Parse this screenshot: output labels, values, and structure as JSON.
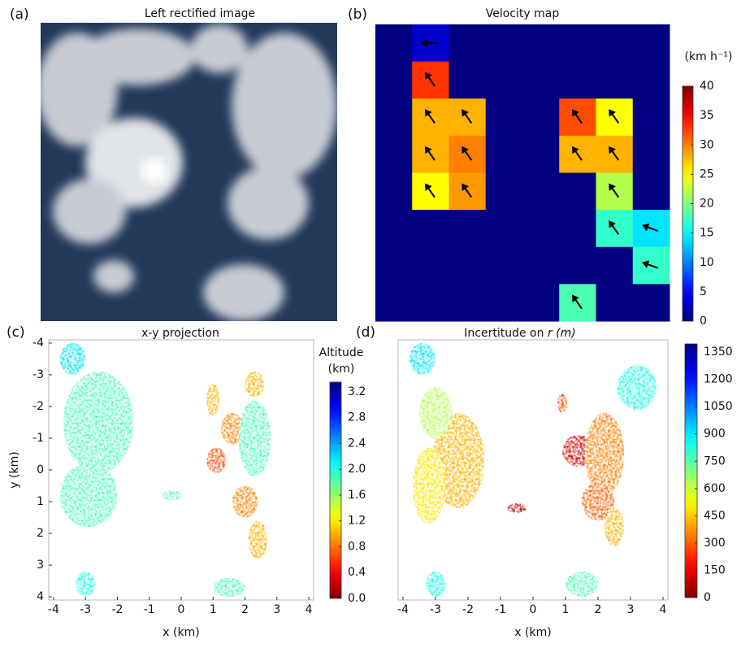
{
  "chart_data": [
    {
      "type": "image",
      "panel": "(a)",
      "title": "Left rectified image"
    },
    {
      "type": "heatmap",
      "panel": "(b)",
      "title": "Velocity map",
      "colormap": "jet",
      "z": [
        [
          0,
          3,
          0,
          0,
          0,
          0,
          0,
          0
        ],
        [
          0,
          33,
          0,
          0,
          0,
          0,
          0,
          0
        ],
        [
          0,
          28,
          28,
          0,
          0,
          32,
          25,
          0
        ],
        [
          0,
          28,
          30,
          0,
          0,
          28,
          28,
          0
        ],
        [
          0,
          25,
          29,
          0,
          0,
          0,
          22,
          0
        ],
        [
          0,
          0,
          0,
          0,
          0,
          0,
          17,
          14
        ],
        [
          0,
          0,
          0,
          0,
          0,
          0,
          0,
          17
        ],
        [
          0,
          0,
          0,
          0,
          0,
          18,
          0,
          0
        ]
      ],
      "colorbar": {
        "label": "(km h⁻¹)",
        "lim": [
          0,
          40
        ],
        "ticks": [
          0,
          5,
          10,
          15,
          20,
          25,
          30,
          35,
          40
        ]
      }
    },
    {
      "type": "scatter",
      "panel": "(c)",
      "title": "x-y projection",
      "xlabel": "x (km)",
      "ylabel": "y (km)",
      "xlim": [
        -4.15,
        4.15
      ],
      "ylim": [
        -4.1,
        4.1
      ],
      "y_inverted": true,
      "xticks": [
        -4,
        -3,
        -2,
        -1,
        0,
        1,
        2,
        3,
        4
      ],
      "yticks": [
        -4,
        -3,
        -2,
        -1,
        0,
        1,
        2,
        3,
        4
      ],
      "colormap": "jet_r",
      "colorbar": {
        "label": [
          "Altitude",
          "(km)"
        ],
        "lim": [
          0,
          3.35
        ],
        "ticks": [
          {
            "value": 0,
            "label": "0.0"
          },
          0.4,
          0.8,
          1.2,
          1.6,
          {
            "value": 2,
            "label": "2.0"
          },
          2.4,
          2.8,
          3.2
        ]
      }
    },
    {
      "type": "scatter",
      "panel": "(d)",
      "title": "Incertitude on",
      "title_emphasis": "r (m)",
      "xlabel": "x (km)",
      "xlim": [
        -4.15,
        4.15
      ],
      "ylim": [
        -4.1,
        4.1
      ],
      "y_inverted": true,
      "xticks": [
        -4,
        -3,
        -2,
        -1,
        0,
        1,
        2,
        3,
        4
      ],
      "colormap": "jet_r",
      "colorbar": {
        "lim": [
          0,
          1395
        ],
        "ticks": [
          0,
          150,
          300,
          450,
          600,
          750,
          900,
          1050,
          1200,
          1350
        ]
      }
    }
  ]
}
